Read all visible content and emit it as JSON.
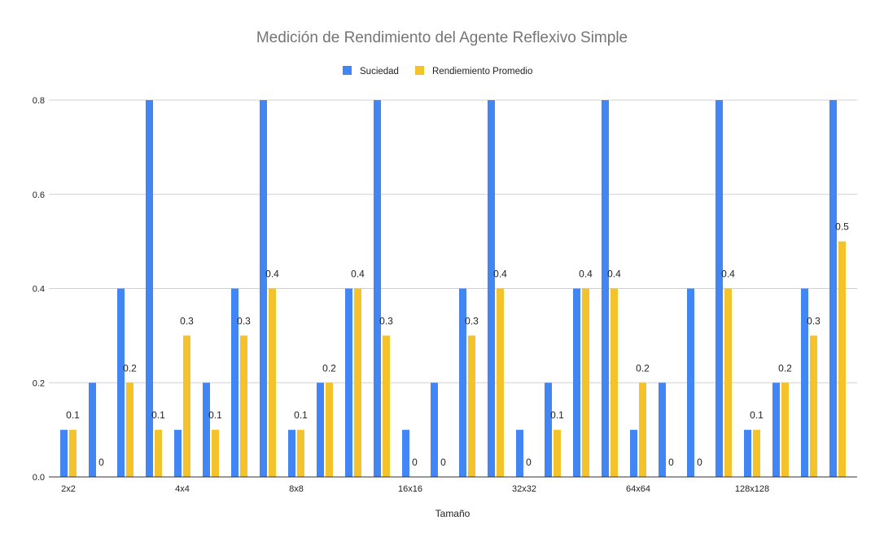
{
  "chart_data": {
    "type": "bar",
    "title": "Medición de Rendimiento del Agente Reflexivo Simple",
    "xlabel": "Tamaño",
    "ylabel": "",
    "ylim": [
      0,
      0.8
    ],
    "yticks": [
      "0.0",
      "0.2",
      "0.4",
      "0.6",
      "0.8"
    ],
    "grid": true,
    "legend_position": "top",
    "categories": [
      "2x2",
      "",
      "",
      "",
      "4x4",
      "",
      "",
      "",
      "8x8",
      "",
      "",
      "",
      "16x16",
      "",
      "",
      "",
      "32x32",
      "",
      "",
      "",
      "64x64",
      "",
      "",
      "",
      "128x128",
      "",
      "",
      ""
    ],
    "series": [
      {
        "name": "Suciedad",
        "color": "#4285f4",
        "values": [
          0.1,
          0.2,
          0.4,
          0.8,
          0.1,
          0.2,
          0.4,
          0.8,
          0.1,
          0.2,
          0.4,
          0.8,
          0.1,
          0.2,
          0.4,
          0.8,
          0.1,
          0.2,
          0.4,
          0.8,
          0.1,
          0.2,
          0.4,
          0.8,
          0.1,
          0.2,
          0.4,
          0.8
        ]
      },
      {
        "name": "Rendiemiento Promedio",
        "color": "#f4c22b",
        "values": [
          0.1,
          0,
          0.2,
          0.1,
          0.3,
          0.1,
          0.3,
          0.4,
          0.1,
          0.2,
          0.4,
          0.3,
          0,
          0,
          0.3,
          0.4,
          0,
          0.1,
          0.4,
          0.4,
          0.2,
          0,
          0,
          0.4,
          0.1,
          0.2,
          0.3,
          0.5
        ],
        "labels": [
          "0.1",
          "0",
          "0.2",
          "0.1",
          "0.3",
          "0.1",
          "0.3",
          "0.4",
          "0.1",
          "0.2",
          "0.4",
          "0.3",
          "0",
          "0",
          "0.3",
          "0.4",
          "0",
          "0.1",
          "0.4",
          "0.4",
          "0.2",
          "0",
          "0",
          "0.4",
          "0.1",
          "0.2",
          "0.3",
          "0.5"
        ]
      }
    ]
  }
}
